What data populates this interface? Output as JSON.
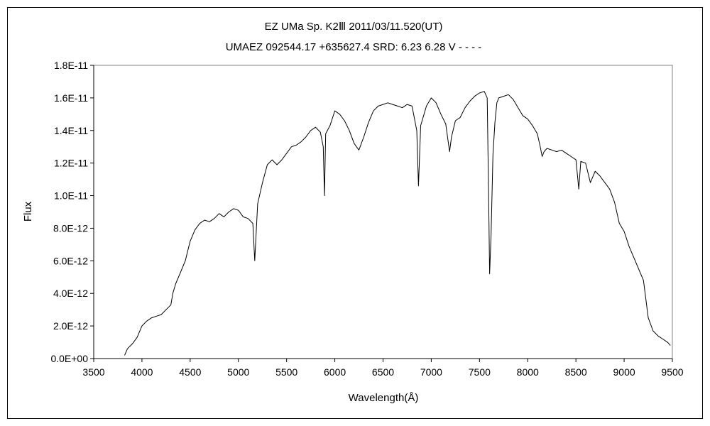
{
  "chart_data": {
    "type": "line",
    "title": "EZ UMa    Sp. K2Ⅲ    2011/03/11.520(UT)",
    "subtitle": "UMAEZ 092544.17 +635627.4 SRD: 6.23 6.28  V - - - -",
    "xlabel": "Wavelength(Å)",
    "ylabel": "Flux",
    "xlim": [
      3500,
      9500
    ],
    "ylim": [
      0,
      1.8e-11
    ],
    "x_ticks": [
      3500,
      4000,
      4500,
      5000,
      5500,
      6000,
      6500,
      7000,
      7500,
      8000,
      8500,
      9000,
      9500
    ],
    "x_tick_labels": [
      "3500",
      "4000",
      "4500",
      "5000",
      "5500",
      "6000",
      "6500",
      "7000",
      "7500",
      "8000",
      "8500",
      "9000",
      "9500"
    ],
    "y_ticks": [
      0,
      2e-12,
      4e-12,
      6e-12,
      8e-12,
      1e-11,
      1.2e-11,
      1.4e-11,
      1.6e-11,
      1.8e-11
    ],
    "y_tick_labels": [
      "0.0E+00",
      "2.0E-12",
      "4.0E-12",
      "6.0E-12",
      "8.0E-12",
      "1.0E-11",
      "1.2E-11",
      "1.4E-11",
      "1.6E-11",
      "1.8E-11"
    ],
    "grid": false,
    "line_color": "#000000",
    "series": [
      {
        "x": [
          3820,
          3850,
          3900,
          3950,
          4000,
          4050,
          4100,
          4150,
          4200,
          4250,
          4300,
          4320,
          4350,
          4400,
          4450,
          4500,
          4550,
          4600,
          4650,
          4700,
          4750,
          4800,
          4850,
          4900,
          4950,
          5000,
          5050,
          5100,
          5150,
          5170,
          5185,
          5200,
          5250,
          5300,
          5350,
          5400,
          5450,
          5500,
          5550,
          5600,
          5650,
          5700,
          5750,
          5800,
          5850,
          5880,
          5893,
          5905,
          5950,
          6000,
          6050,
          6100,
          6150,
          6200,
          6250,
          6300,
          6350,
          6400,
          6450,
          6500,
          6550,
          6600,
          6650,
          6700,
          6750,
          6800,
          6850,
          6867,
          6890,
          6950,
          7000,
          7050,
          7100,
          7150,
          7190,
          7210,
          7250,
          7300,
          7350,
          7400,
          7450,
          7500,
          7550,
          7580,
          7595,
          7605,
          7620,
          7640,
          7660,
          7680,
          7700,
          7750,
          7800,
          7850,
          7900,
          7950,
          8000,
          8050,
          8100,
          8130,
          8150,
          8170,
          8200,
          8250,
          8300,
          8350,
          8400,
          8450,
          8500,
          8530,
          8550,
          8600,
          8650,
          8700,
          8750,
          8800,
          8850,
          8900,
          8950,
          9000,
          9050,
          9100,
          9150,
          9200,
          9250,
          9300,
          9350,
          9400,
          9450,
          9480
        ],
        "y": [
          2e-13,
          6e-13,
          9e-13,
          1.3e-12,
          2e-12,
          2.3e-12,
          2.5e-12,
          2.6e-12,
          2.7e-12,
          3e-12,
          3.3e-12,
          4e-12,
          4.6e-12,
          5.3e-12,
          6e-12,
          7.2e-12,
          7.9e-12,
          8.3e-12,
          8.5e-12,
          8.4e-12,
          8.6e-12,
          8.9e-12,
          8.7e-12,
          9e-12,
          9.2e-12,
          9.1e-12,
          8.7e-12,
          8.6e-12,
          8.3e-12,
          6e-12,
          7.8e-12,
          9.5e-12,
          1.08e-11,
          1.19e-11,
          1.22e-11,
          1.19e-11,
          1.22e-11,
          1.26e-11,
          1.3e-11,
          1.31e-11,
          1.33e-11,
          1.36e-11,
          1.4e-11,
          1.42e-11,
          1.39e-11,
          1.3e-11,
          1e-11,
          1.38e-11,
          1.43e-11,
          1.52e-11,
          1.5e-11,
          1.46e-11,
          1.4e-11,
          1.32e-11,
          1.28e-11,
          1.36e-11,
          1.45e-11,
          1.52e-11,
          1.55e-11,
          1.56e-11,
          1.57e-11,
          1.56e-11,
          1.55e-11,
          1.54e-11,
          1.56e-11,
          1.55e-11,
          1.4e-11,
          1.06e-11,
          1.43e-11,
          1.55e-11,
          1.6e-11,
          1.57e-11,
          1.5e-11,
          1.44e-11,
          1.27e-11,
          1.36e-11,
          1.46e-11,
          1.48e-11,
          1.54e-11,
          1.58e-11,
          1.61e-11,
          1.63e-11,
          1.64e-11,
          1.6e-11,
          1e-11,
          5.2e-12,
          7.5e-12,
          1.25e-11,
          1.45e-11,
          1.57e-11,
          1.6e-11,
          1.61e-11,
          1.62e-11,
          1.59e-11,
          1.54e-11,
          1.49e-11,
          1.47e-11,
          1.43e-11,
          1.38e-11,
          1.3e-11,
          1.24e-11,
          1.27e-11,
          1.29e-11,
          1.28e-11,
          1.27e-11,
          1.28e-11,
          1.26e-11,
          1.24e-11,
          1.22e-11,
          1.04e-11,
          1.21e-11,
          1.2e-11,
          1.08e-11,
          1.15e-11,
          1.12e-11,
          1.08e-11,
          1.04e-11,
          9.6e-12,
          8.3e-12,
          7.8e-12,
          6.9e-12,
          6.2e-12,
          5.5e-12,
          4.8e-12,
          2.5e-12,
          1.7e-12,
          1.4e-12,
          1.2e-12,
          1e-12,
          8e-13
        ]
      }
    ]
  }
}
